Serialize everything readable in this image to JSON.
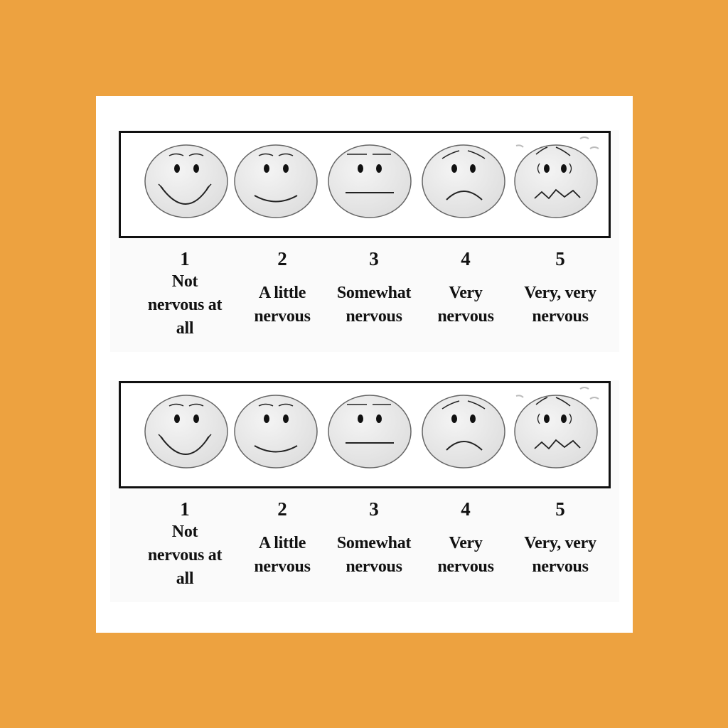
{
  "scales": [
    {
      "levels": [
        {
          "number": "1",
          "label": "Not nervous at all",
          "face": "smiling-face-icon"
        },
        {
          "number": "2",
          "label": "A little nervous",
          "face": "slight-smile-face-icon"
        },
        {
          "number": "3",
          "label": "Somewhat nervous",
          "face": "neutral-face-icon"
        },
        {
          "number": "4",
          "label": "Very nervous",
          "face": "frowning-face-icon"
        },
        {
          "number": "5",
          "label": "Very, very nervous",
          "face": "anxious-face-icon"
        }
      ]
    },
    {
      "levels": [
        {
          "number": "1",
          "label": "Not nervous at all",
          "face": "smiling-face-icon"
        },
        {
          "number": "2",
          "label": "A little nervous",
          "face": "slight-smile-face-icon"
        },
        {
          "number": "3",
          "label": "Somewhat nervous",
          "face": "neutral-face-icon"
        },
        {
          "number": "4",
          "label": "Very nervous",
          "face": "frowning-face-icon"
        },
        {
          "number": "5",
          "label": "Very, very nervous",
          "face": "anxious-face-icon"
        }
      ]
    }
  ],
  "colors": {
    "background": "#EDA240",
    "face_fill": "#e6e6e6",
    "stroke": "#111111"
  }
}
